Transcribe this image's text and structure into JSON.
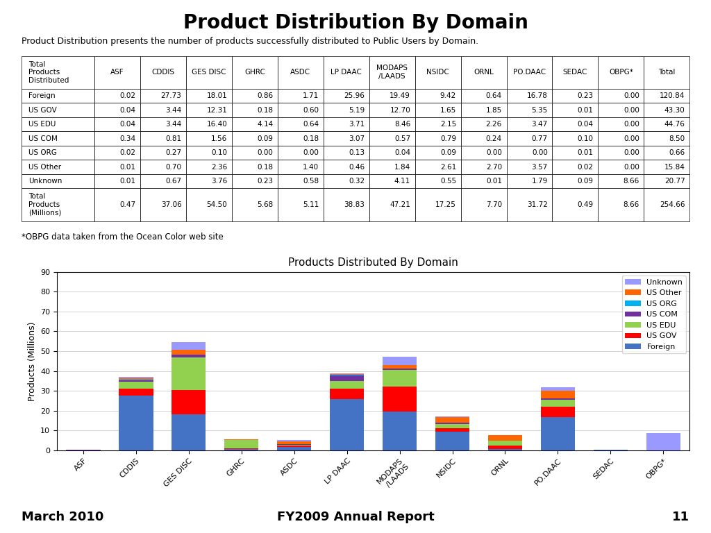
{
  "chart_data": [
    {
      "type": "table",
      "title": "Product Distribution By Domain",
      "subtitle": "Product Distribution presents the number of products successfully distributed to Public Users by Domain.",
      "xlabel": "Total\nProducts\nDistributed",
      "categories": [
        "Foreign",
        "US GOV",
        "US EDU",
        "US COM",
        "US ORG",
        "US Other",
        "Unknown",
        "Total\nProducts\n(Millions)"
      ],
      "series": [
        {
          "name": "ASF",
          "values": [
            0.02,
            0.04,
            0.04,
            0.34,
            0.02,
            0.01,
            0.01,
            0.47
          ],
          "value_labels": [
            "0.02",
            "0.04",
            "0.04",
            "0.34",
            "0.02",
            "0.01",
            "0.01",
            "0.47"
          ]
        },
        {
          "name": "CDDIS",
          "values": [
            27.73,
            3.44,
            3.44,
            0.81,
            0.27,
            0.7,
            0.67,
            37.06
          ],
          "value_labels": [
            "27.73",
            "3.44",
            "3.44",
            "0.81",
            "0.27",
            "0.70",
            "0.67",
            "37.06"
          ]
        },
        {
          "name": "GES DISC",
          "values": [
            18.01,
            12.31,
            16.4,
            1.56,
            0.1,
            2.36,
            3.76,
            54.5
          ],
          "value_labels": [
            "18.01",
            "12.31",
            "16.40",
            "1.56",
            "0.10",
            "2.36",
            "3.76",
            "54.50"
          ]
        },
        {
          "name": "GHRC",
          "values": [
            0.86,
            0.18,
            4.14,
            0.09,
            0.0,
            0.18,
            0.23,
            5.68
          ],
          "value_labels": [
            "0.86",
            "0.18",
            "4.14",
            "0.09",
            "0.00",
            "0.18",
            "0.23",
            "5.68"
          ]
        },
        {
          "name": "ASDC",
          "values": [
            1.71,
            0.6,
            0.64,
            0.18,
            0.0,
            1.4,
            0.58,
            5.11
          ],
          "value_labels": [
            "1.71",
            "0.60",
            "0.64",
            "0.18",
            "0.00",
            "1.40",
            "0.58",
            "5.11"
          ]
        },
        {
          "name": "LP DAAC",
          "values": [
            25.96,
            5.19,
            3.71,
            3.07,
            0.13,
            0.46,
            0.32,
            38.83
          ],
          "value_labels": [
            "25.96",
            "5.19",
            "3.71",
            "3.07",
            "0.13",
            "0.46",
            "0.32",
            "38.83"
          ]
        },
        {
          "name": "MODAPS\n/LAADS",
          "values": [
            19.49,
            12.7,
            8.46,
            0.57,
            0.04,
            1.84,
            4.11,
            47.21
          ],
          "value_labels": [
            "19.49",
            "12.70",
            "8.46",
            "0.57",
            "0.04",
            "1.84",
            "4.11",
            "47.21"
          ]
        },
        {
          "name": "NSIDC",
          "values": [
            9.42,
            1.65,
            2.15,
            0.79,
            0.09,
            2.61,
            0.55,
            17.25
          ],
          "value_labels": [
            "9.42",
            "1.65",
            "2.15",
            "0.79",
            "0.09",
            "2.61",
            "0.55",
            "17.25"
          ]
        },
        {
          "name": "ORNL",
          "values": [
            0.64,
            1.85,
            2.26,
            0.24,
            0.0,
            2.7,
            0.01,
            7.7
          ],
          "value_labels": [
            "0.64",
            "1.85",
            "2.26",
            "0.24",
            "0.00",
            "2.70",
            "0.01",
            "7.70"
          ]
        },
        {
          "name": "PO.DAAC",
          "values": [
            16.78,
            5.35,
            3.47,
            0.77,
            0.0,
            3.57,
            1.79,
            31.72
          ],
          "value_labels": [
            "16.78",
            "5.35",
            "3.47",
            "0.77",
            "0.00",
            "3.57",
            "1.79",
            "31.72"
          ]
        },
        {
          "name": "SEDAC",
          "values": [
            0.23,
            0.01,
            0.04,
            0.1,
            0.01,
            0.02,
            0.09,
            0.49
          ],
          "value_labels": [
            "0.23",
            "0.01",
            "0.04",
            "0.10",
            "0.01",
            "0.02",
            "0.09",
            "0.49"
          ]
        },
        {
          "name": "OBPG*",
          "values": [
            0.0,
            0.0,
            0.0,
            0.0,
            0.0,
            0.0,
            8.66,
            8.66
          ],
          "value_labels": [
            "0.00",
            "0.00",
            "0.00",
            "0.00",
            "0.00",
            "0.00",
            "8.66",
            "8.66"
          ]
        },
        {
          "name": "Total",
          "values": [
            120.84,
            43.3,
            44.76,
            8.5,
            0.66,
            15.84,
            20.77,
            254.66
          ],
          "value_labels": [
            "120.84",
            "43.30",
            "44.76",
            "8.50",
            "0.66",
            "15.84",
            "20.77",
            "254.66"
          ]
        }
      ],
      "annotations": [
        "*OBPG data taken from the Ocean Color web site",
        "March 2010",
        "FY2009 Annual Report",
        "11"
      ]
    },
    {
      "type": "bar",
      "stacked": true,
      "title": "Products Distributed By Domain",
      "ylabel": "Products (Millions)",
      "categories": [
        "ASF",
        "CDDIS",
        "GES DISC",
        "GHRC",
        "ASDC",
        "LP DAAC",
        "MODAPS\n/LAADS",
        "NSIDC",
        "ORNL",
        "PO.DAAC",
        "SEDAC",
        "OBPG*"
      ],
      "ylim": [
        0,
        90
      ],
      "yticks": [
        0,
        10,
        20,
        30,
        40,
        50,
        60,
        70,
        80,
        90
      ],
      "grid": true,
      "legend": "upper right",
      "series": [
        {
          "name": "Foreign",
          "color": "#4472C4",
          "values": [
            0.02,
            27.73,
            18.01,
            0.86,
            1.71,
            25.96,
            19.49,
            9.42,
            0.64,
            16.78,
            0.23,
            0.0
          ]
        },
        {
          "name": "US GOV",
          "color": "#FF0000",
          "values": [
            0.04,
            3.44,
            12.31,
            0.18,
            0.6,
            5.19,
            12.7,
            1.65,
            1.85,
            5.35,
            0.01,
            0.0
          ]
        },
        {
          "name": "US EDU",
          "color": "#92D050",
          "values": [
            0.04,
            3.44,
            16.4,
            4.14,
            0.64,
            3.71,
            8.46,
            2.15,
            2.26,
            3.47,
            0.04,
            0.0
          ]
        },
        {
          "name": "US COM",
          "color": "#7030A0",
          "values": [
            0.34,
            0.81,
            1.56,
            0.09,
            0.18,
            3.07,
            0.57,
            0.79,
            0.24,
            0.77,
            0.1,
            0.0
          ]
        },
        {
          "name": "US ORG",
          "color": "#00B0F0",
          "values": [
            0.02,
            0.27,
            0.1,
            0.0,
            0.0,
            0.13,
            0.04,
            0.09,
            0.0,
            0.0,
            0.01,
            0.0
          ]
        },
        {
          "name": "US Other",
          "color": "#FF6600",
          "values": [
            0.01,
            0.7,
            2.36,
            0.18,
            1.4,
            0.46,
            1.84,
            2.61,
            2.7,
            3.57,
            0.02,
            0.0
          ]
        },
        {
          "name": "Unknown",
          "color": "#9999FF",
          "values": [
            0.01,
            0.67,
            3.76,
            0.23,
            0.58,
            0.32,
            4.11,
            0.55,
            0.01,
            1.79,
            0.09,
            8.66
          ]
        }
      ]
    }
  ]
}
